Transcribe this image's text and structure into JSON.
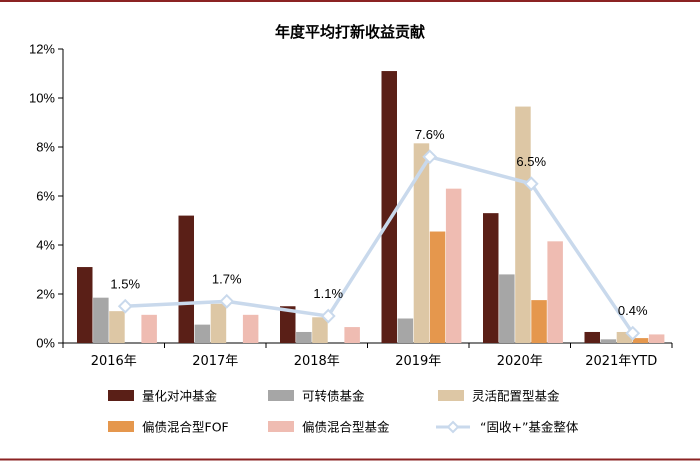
{
  "colors": {
    "border": "#8b2323",
    "axis": "#000000",
    "line": "#c9d9ec"
  },
  "chart_data": {
    "type": "bar",
    "title": "年度平均打新收益贡献",
    "categories": [
      "2016年",
      "2017年",
      "2018年",
      "2019年",
      "2020年",
      "2021年YTD"
    ],
    "ylim": [
      0,
      12
    ],
    "yticks": [
      "0%",
      "2%",
      "4%",
      "6%",
      "8%",
      "10%",
      "12%"
    ],
    "xlabel": "",
    "ylabel": "",
    "legend_position": "bottom",
    "series": [
      {
        "name": "量化对冲基金",
        "kind": "bar",
        "color": "#5a1f17",
        "values": [
          3.1,
          5.2,
          1.5,
          11.1,
          5.3,
          0.45
        ]
      },
      {
        "name": "可转债基金",
        "kind": "bar",
        "color": "#a6a6a6",
        "values": [
          1.85,
          0.75,
          0.45,
          1.0,
          2.8,
          0.15
        ]
      },
      {
        "name": "灵活配置型基金",
        "kind": "bar",
        "color": "#ddc7a5",
        "values": [
          1.3,
          1.6,
          1.05,
          8.15,
          9.65,
          0.45
        ]
      },
      {
        "name": "偏债混合型FOF",
        "kind": "bar",
        "color": "#e5974d",
        "values": [
          0,
          0,
          0,
          4.55,
          1.75,
          0.2
        ]
      },
      {
        "name": "偏债混合型基金",
        "kind": "bar",
        "color": "#efbcb2",
        "values": [
          1.15,
          1.15,
          0.65,
          6.3,
          4.15,
          0.35
        ]
      },
      {
        "name": "“固收+”基金整体",
        "kind": "line",
        "color": "#c9d9ec",
        "values": [
          1.5,
          1.7,
          1.1,
          7.6,
          6.5,
          0.4
        ],
        "labels": [
          "1.5%",
          "1.7%",
          "1.1%",
          "7.6%",
          "6.5%",
          "0.4%"
        ]
      }
    ]
  }
}
